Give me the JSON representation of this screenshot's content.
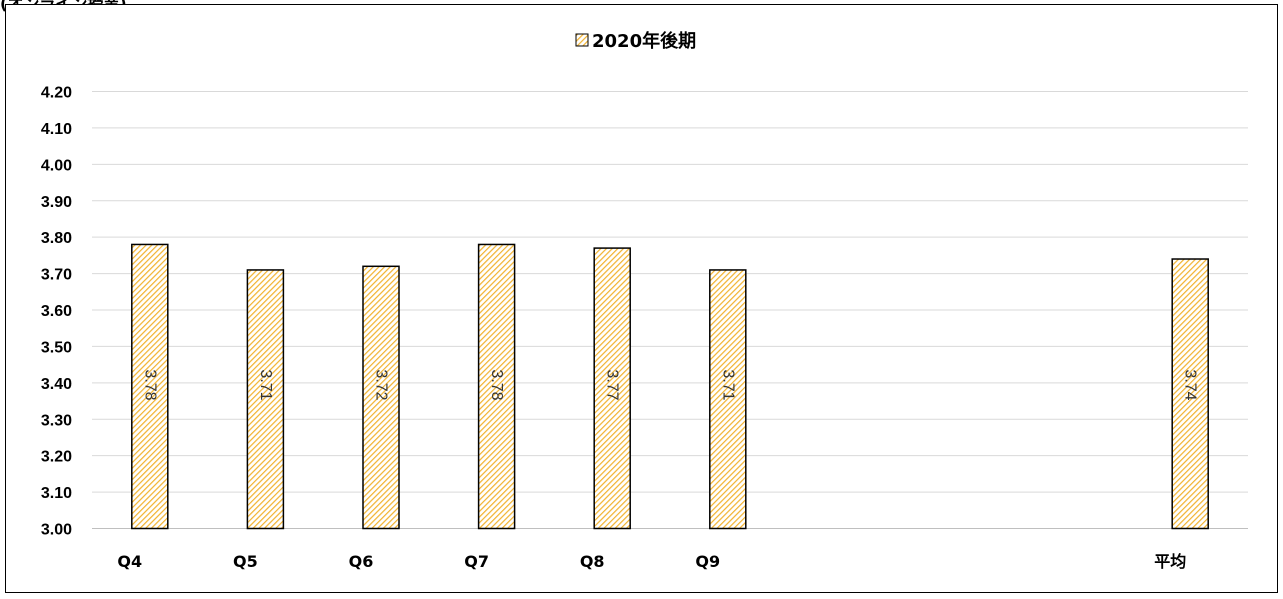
{
  "header": {
    "caption": "(オンライン授業)"
  },
  "chart_data": {
    "type": "bar",
    "categories": [
      "Q4",
      "Q5",
      "Q6",
      "Q7",
      "Q8",
      "Q9",
      "",
      "",
      "",
      "平均"
    ],
    "series": [
      {
        "name": "2020年後期",
        "values": [
          3.78,
          3.71,
          3.72,
          3.78,
          3.77,
          3.71,
          null,
          null,
          null,
          3.74
        ]
      }
    ],
    "data_labels": [
      "3.78",
      "3.71",
      "3.72",
      "3.78",
      "3.77",
      "3.71",
      "",
      "",
      "",
      "3.74"
    ],
    "ylim": [
      3.0,
      4.2
    ],
    "yticks": [
      "3.00",
      "3.10",
      "3.20",
      "3.30",
      "3.40",
      "3.50",
      "3.60",
      "3.70",
      "3.80",
      "3.90",
      "4.00",
      "4.10",
      "4.20"
    ],
    "legend_position": "top",
    "grid": true,
    "colors": {
      "hatch": "#f2b22e",
      "fill": "#ffffff",
      "border": "#000000",
      "grid": "#d9d9d9"
    }
  }
}
